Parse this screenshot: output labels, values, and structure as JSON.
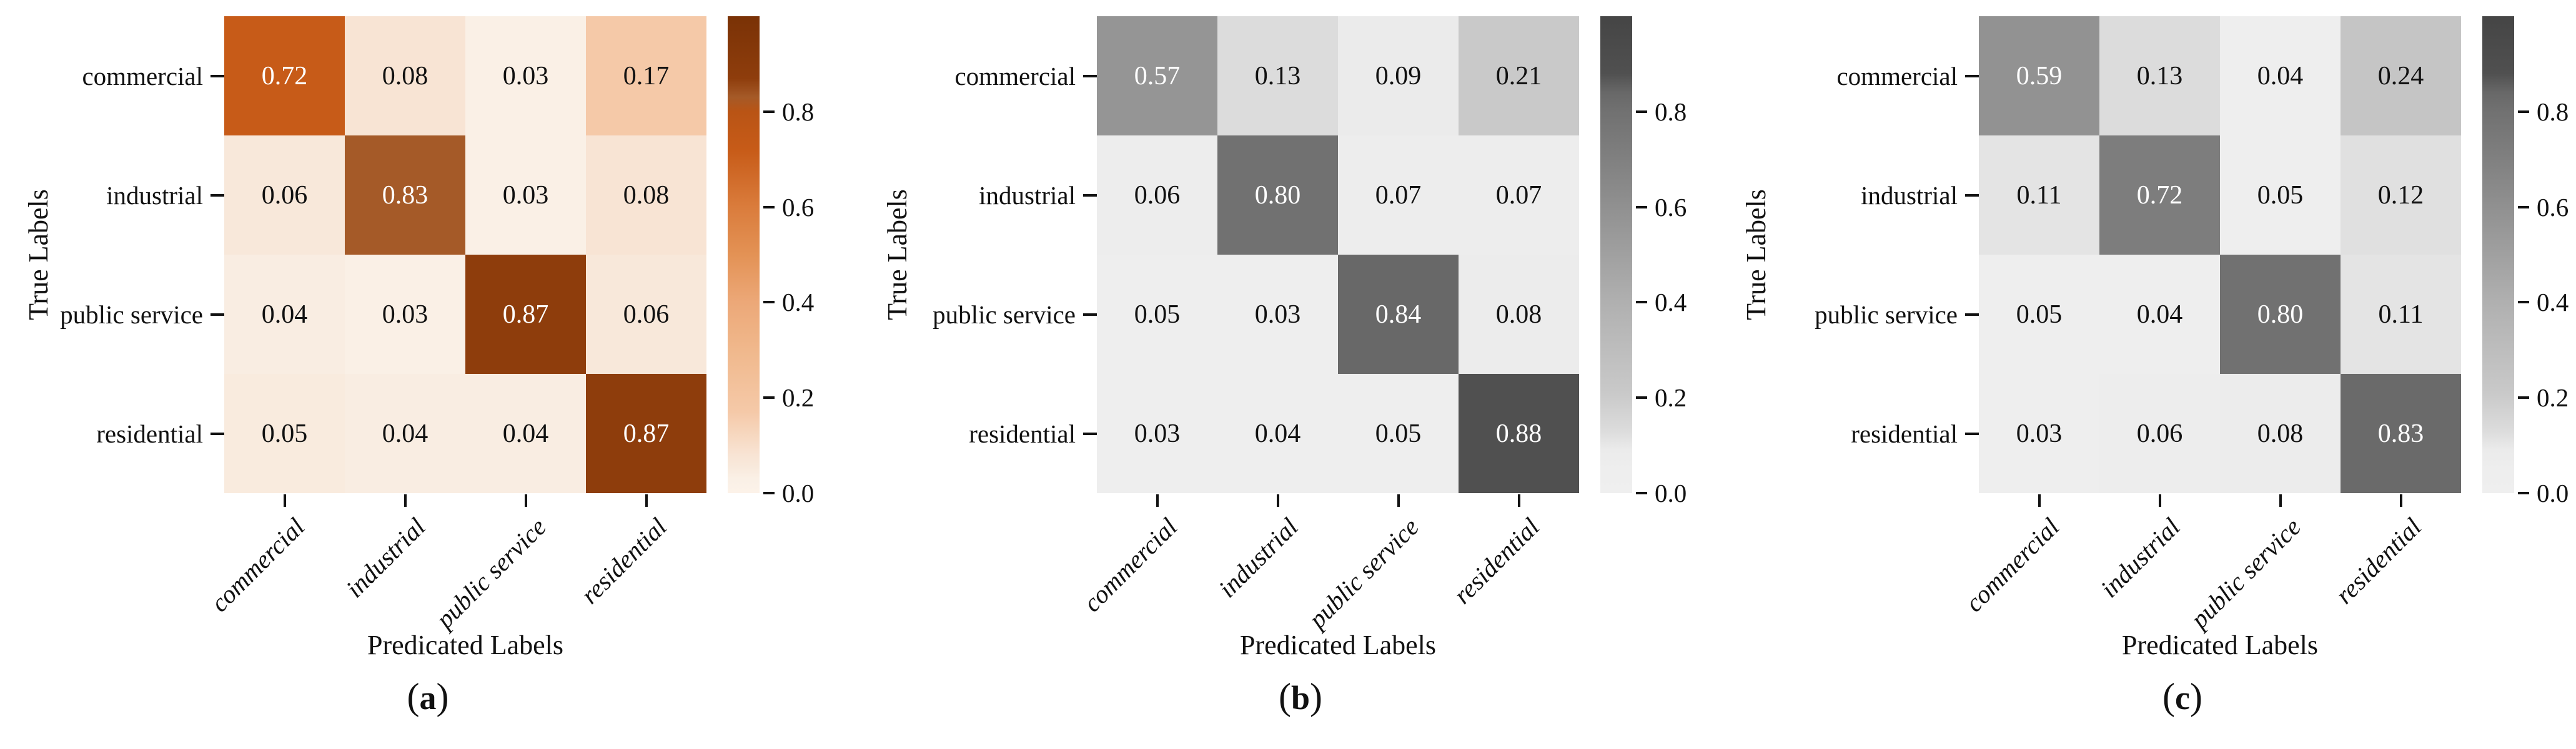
{
  "figure": {
    "background": "#ffffff",
    "y_axis_title": "True Labels",
    "x_axis_title": "Predicated Labels"
  },
  "chart_data": [
    {
      "type": "heatmap",
      "caption": "(a)",
      "caption_letter": "a",
      "colormap": "oranges",
      "ylabel": "True Labels",
      "xlabel": "Predicated Labels",
      "y_categories": [
        "commercial",
        "industrial",
        "public service",
        "residential"
      ],
      "x_categories": [
        "commercial",
        "industrial",
        "public service",
        "residential"
      ],
      "values": [
        [
          0.72,
          0.08,
          0.03,
          0.17
        ],
        [
          0.06,
          0.83,
          0.03,
          0.08
        ],
        [
          0.04,
          0.03,
          0.87,
          0.06
        ],
        [
          0.05,
          0.04,
          0.04,
          0.87
        ]
      ],
      "colorbar": {
        "vmin": 0.0,
        "vmax": 1.0,
        "ticks": [
          0.8,
          0.6,
          0.4,
          0.2,
          0.0
        ]
      }
    },
    {
      "type": "heatmap",
      "caption": "(b)",
      "caption_letter": "b",
      "colormap": "greys",
      "ylabel": "True Labels",
      "xlabel": "Predicated Labels",
      "y_categories": [
        "commercial",
        "industrial",
        "public service",
        "residential"
      ],
      "x_categories": [
        "commercial",
        "industrial",
        "public service",
        "residential"
      ],
      "values": [
        [
          0.57,
          0.13,
          0.09,
          0.21
        ],
        [
          0.06,
          0.8,
          0.07,
          0.07
        ],
        [
          0.05,
          0.03,
          0.84,
          0.08
        ],
        [
          0.03,
          0.04,
          0.05,
          0.88
        ]
      ],
      "colorbar": {
        "vmin": 0.0,
        "vmax": 1.0,
        "ticks": [
          0.8,
          0.6,
          0.4,
          0.2,
          0.0
        ]
      }
    },
    {
      "type": "heatmap",
      "caption": "(c)",
      "caption_letter": "c",
      "colormap": "greys",
      "ylabel": "True Labels",
      "xlabel": "Predicated Labels",
      "y_categories": [
        "commercial",
        "industrial",
        "public service",
        "residential"
      ],
      "x_categories": [
        "commercial",
        "industrial",
        "public service",
        "residential"
      ],
      "values": [
        [
          0.59,
          0.13,
          0.04,
          0.24
        ],
        [
          0.11,
          0.72,
          0.05,
          0.12
        ],
        [
          0.05,
          0.04,
          0.8,
          0.11
        ],
        [
          0.03,
          0.06,
          0.08,
          0.83
        ]
      ],
      "colorbar": {
        "vmin": 0.0,
        "vmax": 1.0,
        "ticks": [
          0.8,
          0.6,
          0.4,
          0.2,
          0.0
        ]
      }
    }
  ],
  "colormaps": {
    "oranges": [
      [
        0.0,
        "#fcf2e9"
      ],
      [
        0.03,
        "#faf0e6"
      ],
      [
        0.06,
        "#f8e8da"
      ],
      [
        0.08,
        "#f8e4d4"
      ],
      [
        0.17,
        "#f5c9a8"
      ],
      [
        0.3,
        "#f0b88c"
      ],
      [
        0.4,
        "#eca878"
      ],
      [
        0.5,
        "#e39255"
      ],
      [
        0.6,
        "#da7c3c"
      ],
      [
        0.72,
        "#c75b18"
      ],
      [
        0.8,
        "#b95415"
      ],
      [
        0.83,
        "#a55a28"
      ],
      [
        0.87,
        "#8e3d0c"
      ],
      [
        1.0,
        "#7a3206"
      ]
    ],
    "greys": [
      [
        0.0,
        "#efefef"
      ],
      [
        0.05,
        "#eeeeee"
      ],
      [
        0.09,
        "#ebebeb"
      ],
      [
        0.13,
        "#dcdcdc"
      ],
      [
        0.21,
        "#c9c9c9"
      ],
      [
        0.4,
        "#b0b0b0"
      ],
      [
        0.57,
        "#959595"
      ],
      [
        0.72,
        "#7d7d7d"
      ],
      [
        0.8,
        "#717171"
      ],
      [
        0.84,
        "#686868"
      ],
      [
        0.88,
        "#505050"
      ],
      [
        1.0,
        "#454545"
      ]
    ]
  },
  "cell_text_colors": {
    "light_cell_text": "#111111",
    "dark_cell_text": "#ffffff",
    "white_text_threshold": 0.5
  }
}
